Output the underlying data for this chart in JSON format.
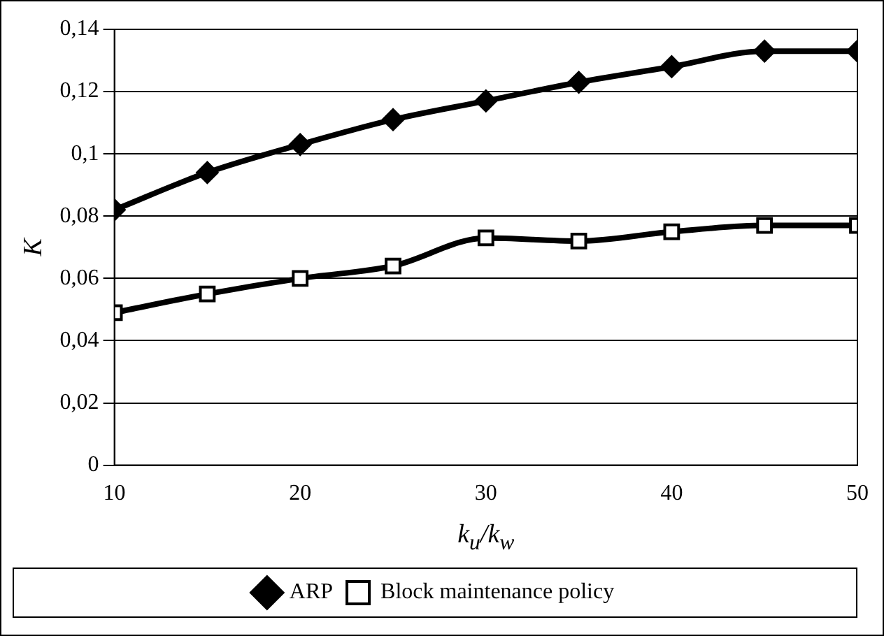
{
  "chart_data": {
    "type": "line",
    "xlabel": "k$_{u}$/k$_{w}$",
    "ylabel": "K",
    "x": [
      10,
      15,
      20,
      25,
      30,
      35,
      40,
      45,
      50
    ],
    "series": [
      {
        "name": "ARP",
        "color": "#000000",
        "marker": "diamond",
        "values": [
          0.082,
          0.094,
          0.103,
          0.111,
          0.117,
          0.123,
          0.128,
          0.133,
          0.133
        ]
      },
      {
        "name": "Block maintenance policy",
        "color": "#000000",
        "marker": "square",
        "values": [
          0.049,
          0.055,
          0.06,
          0.064,
          0.073,
          0.072,
          0.075,
          0.077,
          0.077
        ]
      }
    ],
    "xlim": [
      10,
      50
    ],
    "xticks": [
      10,
      20,
      30,
      40,
      50
    ],
    "ylim": [
      0,
      0.14
    ],
    "yticks": [
      0,
      {
        "value": 0.02,
        "label": "0,02"
      },
      {
        "value": 0.04,
        "label": "0,04"
      },
      {
        "value": 0.06,
        "label": "0,06"
      },
      {
        "value": 0.08,
        "label": "0,08"
      },
      {
        "value": 0.1,
        "label": "0,1"
      },
      {
        "value": 0.12,
        "label": "0,12"
      },
      {
        "value": 0.14,
        "label": "0,14"
      }
    ],
    "grid": "y",
    "legend": "bottom",
    "line_style": "solid"
  }
}
